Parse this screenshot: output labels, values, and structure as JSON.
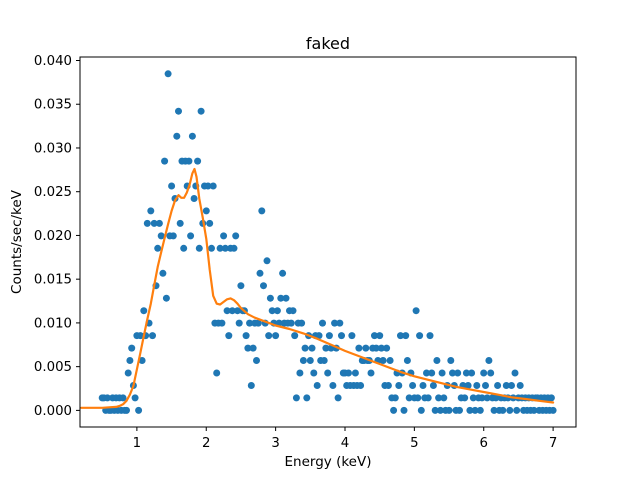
{
  "figure": {
    "background": "#ffffff"
  },
  "chart_data": {
    "type": "scatter",
    "title": "faked",
    "xlabel": "Energy (keV)",
    "ylabel": "Counts/sec/keV",
    "xlim": [
      0.18,
      7.33
    ],
    "ylim": [
      -0.0019,
      0.0404
    ],
    "xticks": [
      1,
      2,
      3,
      4,
      5,
      6,
      7
    ],
    "xtick_labels": [
      "1",
      "2",
      "3",
      "4",
      "5",
      "6",
      "7"
    ],
    "yticks": [
      0.0,
      0.005,
      0.01,
      0.015,
      0.02,
      0.025,
      0.03,
      0.035,
      0.04
    ],
    "ytick_labels": [
      "0.000",
      "0.005",
      "0.010",
      "0.015",
      "0.020",
      "0.025",
      "0.030",
      "0.035",
      "0.040"
    ],
    "grid": false,
    "legend": "none",
    "series": [
      {
        "name": "binned-spectrum-data",
        "kind": "scatter",
        "color": "#1f77b4",
        "marker": "circle",
        "marker_radius": 3.5,
        "e_start": 0.5,
        "e_step": 0.025,
        "quantum": 0.001425,
        "counts": [
          1,
          1,
          0,
          1,
          0,
          0,
          1,
          0,
          1,
          0,
          1,
          0,
          1,
          0,
          0,
          3,
          4,
          5,
          2,
          1,
          6,
          0,
          6,
          4,
          8,
          6,
          15,
          7,
          16,
          6,
          15,
          10,
          13,
          15,
          14,
          11,
          20,
          9,
          27,
          14,
          18,
          14,
          17,
          22,
          24,
          15,
          20,
          13,
          20,
          18,
          20,
          14,
          22,
          17,
          18,
          20,
          13,
          24,
          15,
          18,
          16,
          18,
          15,
          13,
          18,
          7,
          3,
          7,
          13,
          7,
          14,
          13,
          8,
          6,
          13,
          8,
          13,
          14,
          8,
          7,
          10,
          8,
          8,
          6,
          5,
          7,
          2,
          5,
          7,
          4,
          7,
          11,
          16,
          10,
          7,
          12,
          6,
          9,
          8,
          7,
          6,
          8,
          7,
          9,
          11,
          7,
          9,
          7,
          8,
          7,
          8,
          6,
          1,
          7,
          3,
          7,
          4,
          5,
          1,
          6,
          4,
          5,
          3,
          6,
          2,
          6,
          4,
          7,
          4,
          5,
          3,
          6,
          5,
          2,
          7,
          5,
          1,
          7,
          6,
          3,
          3,
          2,
          3,
          2,
          6,
          2,
          3,
          2,
          5,
          2,
          4,
          4,
          5,
          4,
          4,
          3,
          5,
          6,
          5,
          4,
          6,
          5,
          4,
          2,
          5,
          2,
          4,
          1,
          0,
          1,
          3,
          2,
          6,
          3,
          0,
          6,
          4,
          1,
          3,
          2,
          1,
          8,
          1,
          6,
          0,
          2,
          1,
          3,
          1,
          6,
          3,
          2,
          0,
          4,
          1,
          0,
          3,
          1,
          0,
          2,
          0,
          4,
          3,
          2,
          0,
          3,
          0,
          1,
          2,
          1,
          3,
          2,
          0,
          3,
          1,
          0,
          2,
          1,
          0,
          1,
          3,
          2,
          1,
          4,
          3,
          1,
          0,
          1,
          2,
          0,
          1,
          0,
          1,
          2,
          1,
          0,
          2,
          1,
          3,
          0,
          1,
          2,
          1,
          0,
          1,
          0,
          1,
          0,
          1,
          0,
          1,
          1,
          0,
          1,
          0,
          1,
          0,
          1,
          0,
          1,
          0
        ]
      },
      {
        "name": "model-fit",
        "kind": "line",
        "color": "#ff7f0e",
        "line_width": 2.2,
        "points": [
          [
            0.2,
            0.0003
          ],
          [
            0.35,
            0.0003
          ],
          [
            0.5,
            0.0003
          ],
          [
            0.6,
            0.00035
          ],
          [
            0.7,
            0.0004
          ],
          [
            0.75,
            0.0005
          ],
          [
            0.8,
            0.0007
          ],
          [
            0.85,
            0.0011
          ],
          [
            0.9,
            0.0018
          ],
          [
            0.95,
            0.0028
          ],
          [
            1.0,
            0.0047
          ],
          [
            1.05,
            0.0066
          ],
          [
            1.1,
            0.0085
          ],
          [
            1.15,
            0.0104
          ],
          [
            1.2,
            0.0122
          ],
          [
            1.25,
            0.0143
          ],
          [
            1.3,
            0.0164
          ],
          [
            1.35,
            0.0181
          ],
          [
            1.4,
            0.0197
          ],
          [
            1.45,
            0.0213
          ],
          [
            1.5,
            0.0228
          ],
          [
            1.55,
            0.024
          ],
          [
            1.6,
            0.0246
          ],
          [
            1.64,
            0.0243
          ],
          [
            1.68,
            0.0243
          ],
          [
            1.72,
            0.0249
          ],
          [
            1.76,
            0.0258
          ],
          [
            1.8,
            0.0271
          ],
          [
            1.83,
            0.0276
          ],
          [
            1.86,
            0.0267
          ],
          [
            1.9,
            0.0242
          ],
          [
            1.95,
            0.022
          ],
          [
            2.0,
            0.0196
          ],
          [
            2.05,
            0.0161
          ],
          [
            2.1,
            0.0131
          ],
          [
            2.15,
            0.0122
          ],
          [
            2.2,
            0.0121
          ],
          [
            2.25,
            0.0124
          ],
          [
            2.3,
            0.0127
          ],
          [
            2.35,
            0.0128
          ],
          [
            2.4,
            0.0126
          ],
          [
            2.45,
            0.0122
          ],
          [
            2.5,
            0.0117
          ],
          [
            2.6,
            0.011
          ],
          [
            2.7,
            0.0106
          ],
          [
            2.8,
            0.0103
          ],
          [
            2.9,
            0.01
          ],
          [
            3.0,
            0.0097
          ],
          [
            3.2,
            0.0093
          ],
          [
            3.4,
            0.0088
          ],
          [
            3.6,
            0.0082
          ],
          [
            3.8,
            0.0075
          ],
          [
            4.0,
            0.0068
          ],
          [
            4.2,
            0.0062
          ],
          [
            4.4,
            0.0056
          ],
          [
            4.6,
            0.005
          ],
          [
            4.8,
            0.0044
          ],
          [
            5.0,
            0.0039
          ],
          [
            5.2,
            0.0035
          ],
          [
            5.4,
            0.0031
          ],
          [
            5.6,
            0.0027
          ],
          [
            5.8,
            0.0024
          ],
          [
            6.0,
            0.0021
          ],
          [
            6.2,
            0.0018
          ],
          [
            6.4,
            0.0015
          ],
          [
            6.6,
            0.0013
          ],
          [
            6.8,
            0.0011
          ],
          [
            7.0,
            0.0009
          ]
        ]
      }
    ]
  }
}
